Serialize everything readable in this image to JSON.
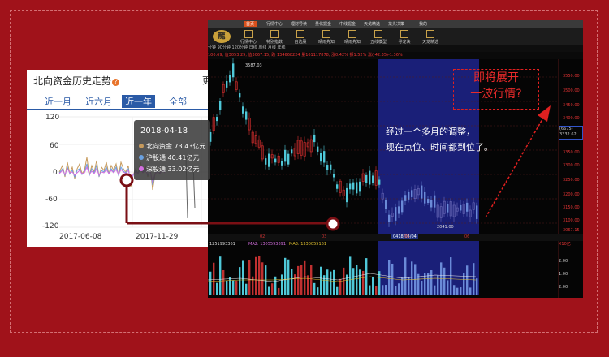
{
  "left_panel": {
    "title": "北向资金历史走势",
    "more_label": "更",
    "tabs": [
      {
        "label": "近一月",
        "active": false
      },
      {
        "label": "近六月",
        "active": false
      },
      {
        "label": "近一年",
        "active": true
      },
      {
        "label": "全部",
        "active": false
      }
    ],
    "y_ticks": [
      "120",
      "60",
      "0",
      "-60",
      "-120"
    ],
    "x_ticks": [
      "2017-06-08",
      "2017-11-29"
    ],
    "tooltip": {
      "date": "2018-04-18",
      "rows": [
        {
          "label": "北向资金 73.43亿元",
          "color": "#c79a5c"
        },
        {
          "label": "沪股通 40.41亿元",
          "color": "#6aa1e0"
        },
        {
          "label": "深股通 33.02亿元",
          "color": "#d46fe0"
        }
      ]
    }
  },
  "terminal": {
    "menu": [
      "首页",
      "行情中心",
      "理财导读",
      "量化掘金",
      "中线掘金",
      "天戈精选",
      "龙头决策",
      "我的"
    ],
    "tools": [
      "行情中心",
      "特别指数",
      "自选股",
      "晴雨先知",
      "晴雨先知",
      "五线模型",
      "寻龙诀",
      "天龙精选"
    ],
    "info_line": "分钟  90分钟  120分钟  日线  周线  月线  年线",
    "price_line": "100.69, 值3053.29, 值3067.15, 跌 134668224 量161117878, 涨0.42% 振1.52% 涨(-42.35)-1.36%",
    "high_label": "3587.03",
    "low_label": "2041.00",
    "annotation": "经过一个多月的调整，\n现在点位、时间都到位了。",
    "callout": "即将展开\n一波行情?",
    "price_axis": [
      "3550.00",
      "3500.00",
      "3450.00",
      "3400.00",
      "3350.00",
      "3300.00",
      "3250.00",
      "3200.00",
      "3150.00",
      "3100.00",
      "3067.15"
    ],
    "current_price": "(6675)\n3332.62",
    "dates": [
      "02",
      "03",
      "04",
      "05",
      "06"
    ],
    "cursor_date": "0418/04/04",
    "volume_legend": {
      "vol": "1251993361",
      "ma1": "MA2: 1305593891",
      "ma2": "MA3: 1330055161"
    },
    "vol_axis": [
      "X10亿",
      "2.00",
      "1.00",
      "2.00"
    ],
    "colors": {
      "up": "#e03030",
      "down": "#4fc8d8",
      "highlight": "#1a1f78",
      "callout": "#e02020"
    }
  }
}
